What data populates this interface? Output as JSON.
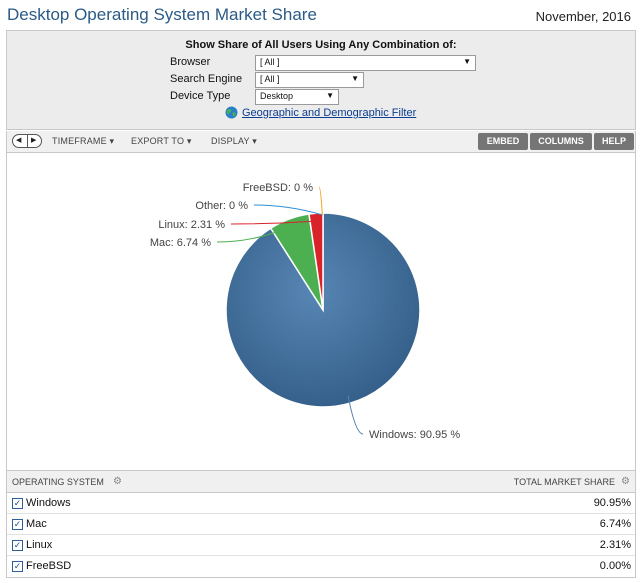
{
  "header": {
    "title": "Desktop Operating System Market Share",
    "date": "November, 2016"
  },
  "filter": {
    "heading": "Show Share of All Users Using Any Combination of:",
    "browser_label": "Browser",
    "browser_value": "[ All ]",
    "search_engine_label": "Search Engine",
    "search_engine_value": "[ All ]",
    "device_type_label": "Device Type",
    "device_type_value": "Desktop",
    "geo_link": "Geographic and Demographic Filter",
    "geo_icon": "globe-icon"
  },
  "toolbar": {
    "timeframe": "TIMEFRAME",
    "export_to": "EXPORT TO",
    "display": "DISPLAY",
    "embed": "EMBED",
    "columns": "COLUMNS",
    "help": "HELP"
  },
  "chart_data": {
    "type": "pie",
    "slices": [
      {
        "label": "Windows",
        "value": 90.95,
        "display": "Windows: 90.95 %",
        "color": "#3d6a96"
      },
      {
        "label": "Mac",
        "value": 6.74,
        "display": "Mac: 6.74 %",
        "color": "#4caf50"
      },
      {
        "label": "Linux",
        "value": 2.31,
        "display": "Linux: 2.31 %",
        "color": "#d9232a"
      },
      {
        "label": "Other",
        "value": 0,
        "display": "Other: 0 %",
        "color": "#2d8fd5"
      },
      {
        "label": "FreeBSD",
        "value": 0,
        "display": "FreeBSD: 0 %",
        "color": "#f0a01e"
      }
    ]
  },
  "table": {
    "col_os": "OPERATING SYSTEM",
    "col_share": "TOTAL MARKET SHARE",
    "rows": [
      {
        "os": "Windows",
        "share": "90.95%"
      },
      {
        "os": "Mac",
        "share": "6.74%"
      },
      {
        "os": "Linux",
        "share": "2.31%"
      },
      {
        "os": "FreeBSD",
        "share": "0.00%"
      }
    ]
  }
}
